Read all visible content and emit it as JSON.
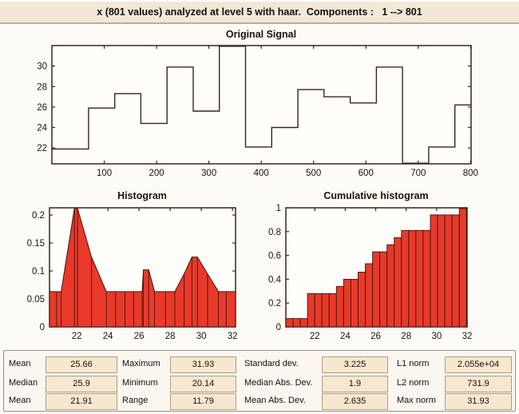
{
  "header": {
    "text": "x (801 values) analyzed at level 5 with haar.  Components :   1 --> 801"
  },
  "colors": {
    "accent_red": "#e8392b",
    "edge_dark": "#41170d",
    "axis": "#38261b",
    "plot_bg": "#fffefa",
    "header_beige": "#f3e8d8",
    "field_beige": "#f6e7ce"
  },
  "chart_data": [
    {
      "id": "original_signal",
      "type": "line",
      "title": "Original Signal",
      "xlabel": "",
      "ylabel": "",
      "xlim": [
        0,
        801
      ],
      "ylim": [
        20.45,
        32.0
      ],
      "xticks": [
        100,
        200,
        300,
        400,
        500,
        600,
        700,
        800
      ],
      "yticks": [
        22,
        24,
        26,
        28,
        30
      ],
      "grid": false,
      "segments": [
        [
          0,
          70,
          21.9
        ],
        [
          70,
          120,
          25.9
        ],
        [
          120,
          170,
          27.3
        ],
        [
          170,
          220,
          24.4
        ],
        [
          220,
          270,
          29.9
        ],
        [
          270,
          320,
          25.6
        ],
        [
          320,
          370,
          31.93
        ],
        [
          370,
          420,
          22.1
        ],
        [
          420,
          470,
          24.0
        ],
        [
          470,
          520,
          27.7
        ],
        [
          520,
          570,
          27.0
        ],
        [
          570,
          620,
          26.4
        ],
        [
          620,
          670,
          29.9
        ],
        [
          670,
          720,
          20.14
        ],
        [
          720,
          770,
          22.1
        ],
        [
          770,
          801,
          26.2
        ]
      ]
    },
    {
      "id": "histogram",
      "type": "area",
      "title": "Histogram",
      "xlabel": "",
      "ylabel": "",
      "xlim": [
        20.25,
        32.2
      ],
      "ylim": [
        0,
        0.213
      ],
      "xticks": [
        22,
        24,
        26,
        28,
        30,
        32
      ],
      "yticks": [
        0,
        0.05,
        0.1,
        0.15,
        0.2
      ],
      "grid": false,
      "points": [
        [
          20.25,
          0.063
        ],
        [
          20.7,
          0.063
        ],
        [
          21.0,
          0.063
        ],
        [
          21.85,
          0.213
        ],
        [
          22.05,
          0.213
        ],
        [
          22.95,
          0.125
        ],
        [
          23.9,
          0.063
        ],
        [
          24.5,
          0.063
        ],
        [
          25.1,
          0.063
        ],
        [
          25.65,
          0.063
        ],
        [
          26.2,
          0.063
        ],
        [
          26.28,
          0.102
        ],
        [
          26.62,
          0.102
        ],
        [
          27.0,
          0.063
        ],
        [
          27.7,
          0.063
        ],
        [
          28.3,
          0.063
        ],
        [
          28.9,
          0.095
        ],
        [
          29.4,
          0.125
        ],
        [
          29.75,
          0.125
        ],
        [
          30.4,
          0.095
        ],
        [
          31.1,
          0.063
        ],
        [
          31.6,
          0.063
        ],
        [
          32.2,
          0.063
        ]
      ]
    },
    {
      "id": "cumulative_histogram",
      "type": "bar",
      "title": "Cumulative histogram",
      "xlabel": "",
      "ylabel": "",
      "xlim": [
        20.1,
        32.0
      ],
      "ylim": [
        0,
        1
      ],
      "xticks": [
        22,
        24,
        26,
        28,
        30,
        32
      ],
      "yticks": [
        0,
        0.2,
        0.4,
        0.6,
        0.8,
        1
      ],
      "grid": false,
      "bin_start": 20.1,
      "bin_width": 0.4744,
      "values": [
        0.07,
        0.07,
        0.07,
        0.28,
        0.28,
        0.28,
        0.28,
        0.34,
        0.4,
        0.4,
        0.46,
        0.53,
        0.63,
        0.63,
        0.69,
        0.75,
        0.81,
        0.81,
        0.81,
        0.81,
        0.94,
        0.94,
        0.94,
        0.94,
        1.0
      ]
    }
  ],
  "stats": {
    "rows": [
      [
        {
          "label": "Mean",
          "value": "25.66"
        },
        {
          "label": "Maximum",
          "value": "31.93"
        },
        {
          "label": "Standard dev.",
          "value": "3.225"
        },
        {
          "label": "L1 norm",
          "value": "2.055e+04"
        }
      ],
      [
        {
          "label": "Median",
          "value": "25.9"
        },
        {
          "label": "Minimum",
          "value": "20.14"
        },
        {
          "label": "Median Abs. Dev.",
          "value": "1.9"
        },
        {
          "label": "L2 norm",
          "value": "731.9"
        }
      ],
      [
        {
          "label": "Mean",
          "value": "21.91"
        },
        {
          "label": "Range",
          "value": "11.79"
        },
        {
          "label": "Mean Abs. Dev.",
          "value": "2.635"
        },
        {
          "label": "Max norm",
          "value": "31.93"
        }
      ]
    ]
  }
}
